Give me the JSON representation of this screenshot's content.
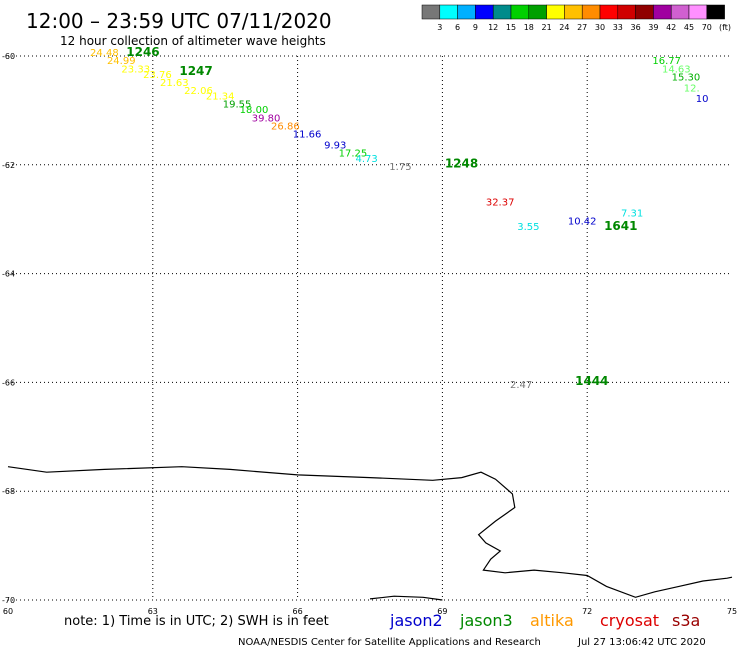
{
  "header": {
    "title": "12:00 – 23:59 UTC 07/11/2020",
    "subtitle": "12 hour collection of altimeter wave heights"
  },
  "legend_scale": {
    "colors": [
      "#777777",
      "#00ffff",
      "#00b0ff",
      "#0000ff",
      "#008b8b",
      "#00d000",
      "#00a000",
      "#ffff00",
      "#ffc000",
      "#ff8c00",
      "#ff0000",
      "#d00000",
      "#900000",
      "#a000a0",
      "#d060d0",
      "#ff90ff",
      "#000000"
    ],
    "labels": [
      "3",
      "6",
      "9",
      "12",
      "15",
      "18",
      "21",
      "24",
      "27",
      "30",
      "33",
      "36",
      "39",
      "42",
      "45",
      "70"
    ],
    "unit": "(ft)"
  },
  "footer": {
    "note": "note: 1) Time is in UTC; 2) SWH is in feet",
    "satellites": [
      {
        "name": "jason2",
        "color": "#0000cc"
      },
      {
        "name": "jason3",
        "color": "#008800"
      },
      {
        "name": "altika",
        "color": "#ff9900"
      },
      {
        "name": "cryosat",
        "color": "#dd0000"
      },
      {
        "name": "s3a",
        "color": "#990000"
      }
    ],
    "credit": "NOAA/NESDIS Center for Satellite Applications and Research",
    "timestamp": "Jul 27 13:06:42 UTC 2020"
  },
  "chart_data": {
    "type": "scatter",
    "xlim": [
      60,
      75
    ],
    "ylim": [
      -70,
      -60
    ],
    "x_ticks": [
      60,
      63,
      66,
      69,
      72,
      75
    ],
    "y_ticks": [
      -60,
      -62,
      -64,
      -66,
      -68,
      -70
    ],
    "x_tick_labels": [
      "60",
      "63",
      "66",
      "69",
      "72",
      "75"
    ],
    "y_tick_labels": [
      "-60",
      "-62",
      "-64",
      "-66",
      "-68",
      "-70"
    ],
    "grid": true,
    "points": [
      {
        "x": 61.7,
        "y": -60.0,
        "label": "24.48",
        "color": "#ffc000"
      },
      {
        "x": 62.05,
        "y": -60.15,
        "label": "24.99",
        "color": "#ffc000"
      },
      {
        "x": 62.35,
        "y": -60.3,
        "label": "23.33",
        "color": "#ffff00"
      },
      {
        "x": 62.8,
        "y": -60.4,
        "label": "23.76",
        "color": "#ffff00"
      },
      {
        "x": 63.15,
        "y": -60.55,
        "label": "21.63",
        "color": "#ffff00"
      },
      {
        "x": 63.65,
        "y": -60.7,
        "label": "22.06",
        "color": "#ffff00"
      },
      {
        "x": 64.1,
        "y": -60.8,
        "label": "21.34",
        "color": "#ffff00"
      },
      {
        "x": 64.45,
        "y": -60.95,
        "label": "19.55",
        "color": "#00a000"
      },
      {
        "x": 64.8,
        "y": -61.05,
        "label": "18.00",
        "color": "#00d000"
      },
      {
        "x": 65.05,
        "y": -61.2,
        "label": "39.80",
        "color": "#a000a0"
      },
      {
        "x": 65.45,
        "y": -61.35,
        "label": "26.86",
        "color": "#ff8c00"
      },
      {
        "x": 65.9,
        "y": -61.5,
        "label": "11.66",
        "color": "#0000cc"
      },
      {
        "x": 66.55,
        "y": -61.7,
        "label": "9.93",
        "color": "#0000cc"
      },
      {
        "x": 66.85,
        "y": -61.85,
        "label": "17.25",
        "color": "#00d000"
      },
      {
        "x": 67.2,
        "y": -61.95,
        "label": "4.73",
        "color": "#00e0e0"
      },
      {
        "x": 67.9,
        "y": -62.1,
        "label": "1.75",
        "color": "#777777"
      },
      {
        "x": 69.9,
        "y": -62.75,
        "label": "32.37",
        "color": "#dd0000"
      },
      {
        "x": 71.6,
        "y": -63.1,
        "label": "10.42",
        "color": "#0000cc"
      },
      {
        "x": 70.55,
        "y": -63.2,
        "label": "3.55",
        "color": "#00e0e0"
      },
      {
        "x": 72.7,
        "y": -62.95,
        "label": "7.31",
        "color": "#00e0e0"
      },
      {
        "x": 73.35,
        "y": -60.15,
        "label": "16.77",
        "color": "#00d000"
      },
      {
        "x": 73.55,
        "y": -60.3,
        "label": "14.63",
        "color": "#66ff66"
      },
      {
        "x": 73.75,
        "y": -60.45,
        "label": "15.30",
        "color": "#00b000"
      },
      {
        "x": 74.0,
        "y": -60.65,
        "label": "12.",
        "color": "#66ff66"
      },
      {
        "x": 74.25,
        "y": -60.85,
        "label": "10",
        "color": "#0000cc"
      },
      {
        "x": 70.4,
        "y": -66.1,
        "label": "2.47",
        "color": "#777777"
      }
    ],
    "pass_labels": [
      {
        "x": 62.45,
        "y": -60.0,
        "label": "1246",
        "color": "#008800"
      },
      {
        "x": 63.55,
        "y": -60.35,
        "label": "1247",
        "color": "#008800"
      },
      {
        "x": 69.05,
        "y": -62.05,
        "label": "1248",
        "color": "#008800"
      },
      {
        "x": 72.35,
        "y": -63.2,
        "label": "1641",
        "color": "#008800"
      },
      {
        "x": 71.75,
        "y": -66.05,
        "label": "1444",
        "color": "#008800"
      }
    ],
    "coastline": [
      [
        60.0,
        -67.55
      ],
      [
        60.8,
        -67.65
      ],
      [
        62.0,
        -67.6
      ],
      [
        63.6,
        -67.55
      ],
      [
        64.6,
        -67.6
      ],
      [
        66.0,
        -67.7
      ],
      [
        67.5,
        -67.75
      ],
      [
        68.8,
        -67.8
      ],
      [
        69.4,
        -67.75
      ],
      [
        69.8,
        -67.65
      ],
      [
        70.1,
        -67.78
      ],
      [
        70.45,
        -68.05
      ],
      [
        70.5,
        -68.3
      ],
      [
        70.1,
        -68.55
      ],
      [
        69.75,
        -68.8
      ],
      [
        69.9,
        -68.95
      ],
      [
        70.2,
        -69.1
      ],
      [
        70.0,
        -69.25
      ],
      [
        69.85,
        -69.45
      ],
      [
        70.3,
        -69.5
      ],
      [
        70.9,
        -69.45
      ],
      [
        71.5,
        -69.5
      ],
      [
        72.0,
        -69.55
      ],
      [
        72.4,
        -69.75
      ],
      [
        73.0,
        -69.95
      ],
      [
        73.4,
        -69.85
      ],
      [
        73.9,
        -69.75
      ],
      [
        74.4,
        -69.65
      ],
      [
        74.9,
        -69.6
      ],
      [
        75.0,
        -69.58
      ]
    ],
    "coastline_south": [
      [
        69.0,
        -70.0
      ],
      [
        68.6,
        -69.95
      ],
      [
        68.0,
        -69.93
      ],
      [
        67.5,
        -69.98
      ]
    ]
  }
}
